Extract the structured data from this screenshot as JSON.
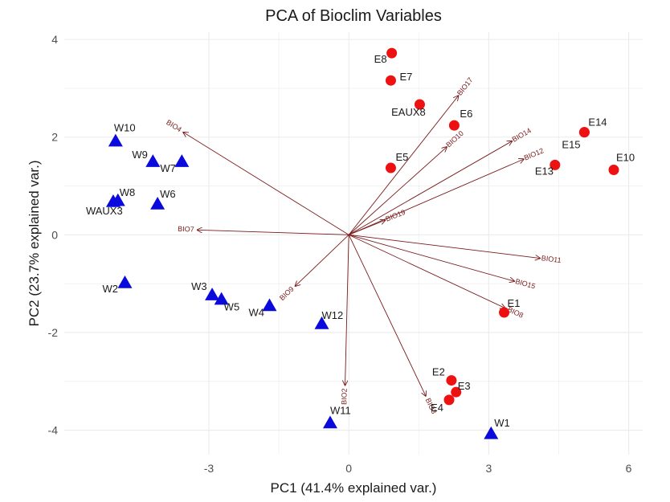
{
  "chart_data": {
    "type": "scatter",
    "title": "PCA of Bioclim Variables",
    "xlabel": "PC1 (41.4% explained var.)",
    "ylabel": "PC2 (23.7% explained var.)",
    "xlim": [
      -6.1,
      6.3
    ],
    "ylim": [
      -4.5,
      4.15
    ],
    "x_ticks": [
      -3,
      0,
      3,
      6
    ],
    "y_ticks": [
      -4,
      -2,
      0,
      2,
      4
    ],
    "grid": true,
    "legend": "none",
    "colors": {
      "east_points": "#ee1111",
      "west_points": "#0a0adc",
      "vectors": "#7a1a1a",
      "grid": "#ebebeb"
    },
    "groups": [
      {
        "marker": "circle",
        "color": "#ee1111",
        "points": [
          {
            "label": "E8",
            "x": 0.92,
            "y": 3.72
          },
          {
            "label": "E7",
            "x": 0.9,
            "y": 3.16
          },
          {
            "label": "EAUX8",
            "x": 1.52,
            "y": 2.67
          },
          {
            "label": "E6",
            "x": 2.26,
            "y": 2.24
          },
          {
            "label": "E5",
            "x": 0.9,
            "y": 1.37
          },
          {
            "label": "E14",
            "x": 5.05,
            "y": 2.1
          },
          {
            "label": "E15",
            "x": 5.05,
            "y": 2.1
          },
          {
            "label": "E13",
            "x": 4.42,
            "y": 1.43
          },
          {
            "label": "E10",
            "x": 5.68,
            "y": 1.33
          },
          {
            "label": "E1",
            "x": 3.33,
            "y": -1.59
          },
          {
            "label": "E2",
            "x": 2.2,
            "y": -2.98
          },
          {
            "label": "E3",
            "x": 2.3,
            "y": -3.22
          },
          {
            "label": "E4",
            "x": 2.15,
            "y": -3.38
          }
        ]
      },
      {
        "marker": "triangle",
        "color": "#0a0adc",
        "points": [
          {
            "label": "W10",
            "x": -5.0,
            "y": 1.92
          },
          {
            "label": "W9",
            "x": -4.2,
            "y": 1.5
          },
          {
            "label": "W7",
            "x": -3.58,
            "y": 1.5
          },
          {
            "label": "W8",
            "x": -4.95,
            "y": 0.7
          },
          {
            "label": "WAUX3",
            "x": -5.05,
            "y": 0.68
          },
          {
            "label": "W6",
            "x": -4.1,
            "y": 0.63
          },
          {
            "label": "W2",
            "x": -4.8,
            "y": -0.98
          },
          {
            "label": "W3",
            "x": -2.93,
            "y": -1.23
          },
          {
            "label": "W5",
            "x": -2.73,
            "y": -1.32
          },
          {
            "label": "W4",
            "x": -1.7,
            "y": -1.45
          },
          {
            "label": "W12",
            "x": -0.58,
            "y": -1.82
          },
          {
            "label": "W11",
            "x": -0.4,
            "y": -3.85
          },
          {
            "label": "W1",
            "x": 3.05,
            "y": -4.07
          }
        ]
      }
    ],
    "loadings": [
      {
        "label": "BIO4",
        "x": -3.55,
        "y": 2.1
      },
      {
        "label": "BIO7",
        "x": -3.25,
        "y": 0.1
      },
      {
        "label": "BIO9",
        "x": -1.15,
        "y": -1.05
      },
      {
        "label": "BIO2",
        "x": -0.08,
        "y": -3.08
      },
      {
        "label": "BIO3",
        "x": 1.65,
        "y": -3.3
      },
      {
        "label": "BIO8",
        "x": 3.35,
        "y": -1.5
      },
      {
        "label": "BIO15",
        "x": 3.55,
        "y": -0.95
      },
      {
        "label": "BIO11",
        "x": 4.1,
        "y": -0.48
      },
      {
        "label": "BIO19",
        "x": 0.78,
        "y": 0.3
      },
      {
        "label": "BIO10",
        "x": 2.1,
        "y": 1.8
      },
      {
        "label": "BIO14",
        "x": 3.5,
        "y": 1.92
      },
      {
        "label": "BIO12",
        "x": 3.75,
        "y": 1.55
      },
      {
        "label": "BIO17",
        "x": 2.35,
        "y": 2.85
      }
    ]
  }
}
